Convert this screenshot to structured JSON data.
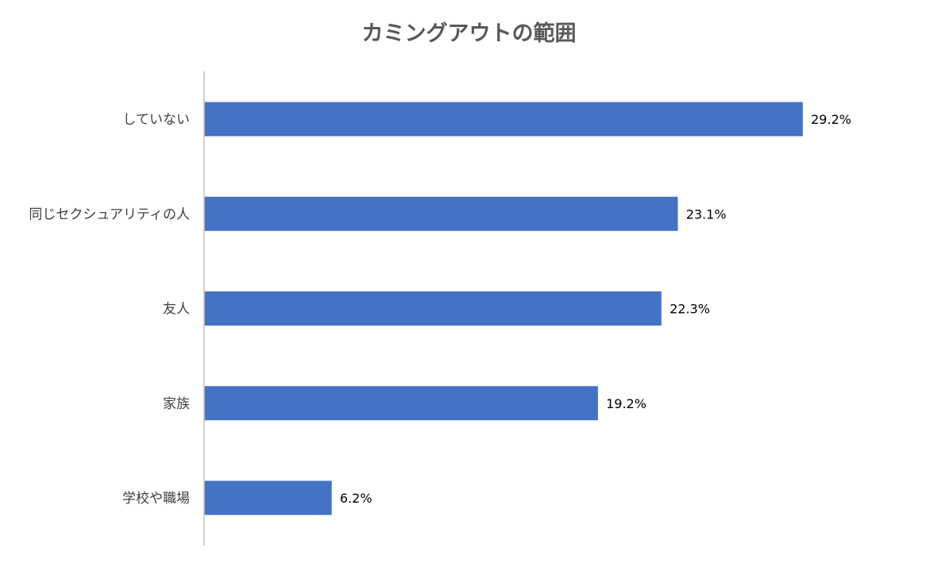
{
  "chart_data": {
    "type": "bar",
    "orientation": "horizontal",
    "title": "カミングアウトの範囲",
    "categories": [
      "していない",
      "同じセクシュアリティの人",
      "友人",
      "家族",
      "学校や職場"
    ],
    "values": [
      29.2,
      23.1,
      22.3,
      19.2,
      6.2
    ],
    "value_labels": [
      "29.2%",
      "23.1%",
      "22.3%",
      "19.2%",
      "6.2%"
    ],
    "xlim": [
      0,
      35
    ],
    "grid": false,
    "legend": "none",
    "bar_color": "#4472C4",
    "axis_color": "#BFBFBF"
  }
}
